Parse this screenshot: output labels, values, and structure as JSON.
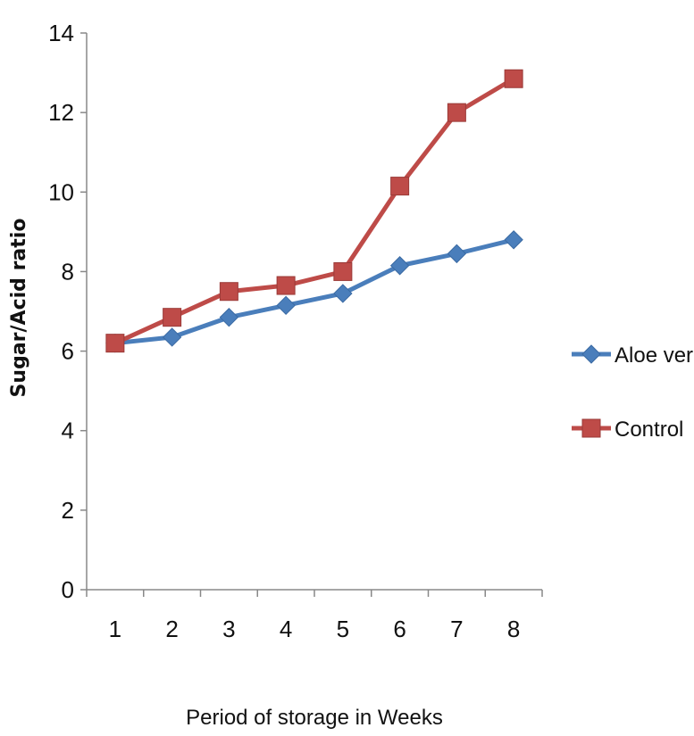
{
  "chart_data": {
    "type": "line",
    "title": "",
    "xlabel": "Period of storage in Weeks",
    "ylabel": "Sugar/Acid ratio",
    "categories": [
      "1",
      "2",
      "3",
      "4",
      "5",
      "6",
      "7",
      "8"
    ],
    "ylim": [
      0,
      14
    ],
    "yticks": [
      "0",
      "2",
      "4",
      "6",
      "8",
      "10",
      "12",
      "14"
    ],
    "grid": false,
    "legend_position": "right",
    "series": [
      {
        "name": "Aloe vera",
        "color": "#4a7ebb",
        "marker": "diamond",
        "values": [
          6.2,
          6.35,
          6.85,
          7.15,
          7.45,
          8.15,
          8.45,
          8.8
        ]
      },
      {
        "name": "Control",
        "color": "#be4b48",
        "marker": "square",
        "values": [
          6.2,
          6.85,
          7.5,
          7.65,
          8.0,
          10.15,
          12.0,
          12.85
        ]
      }
    ]
  }
}
